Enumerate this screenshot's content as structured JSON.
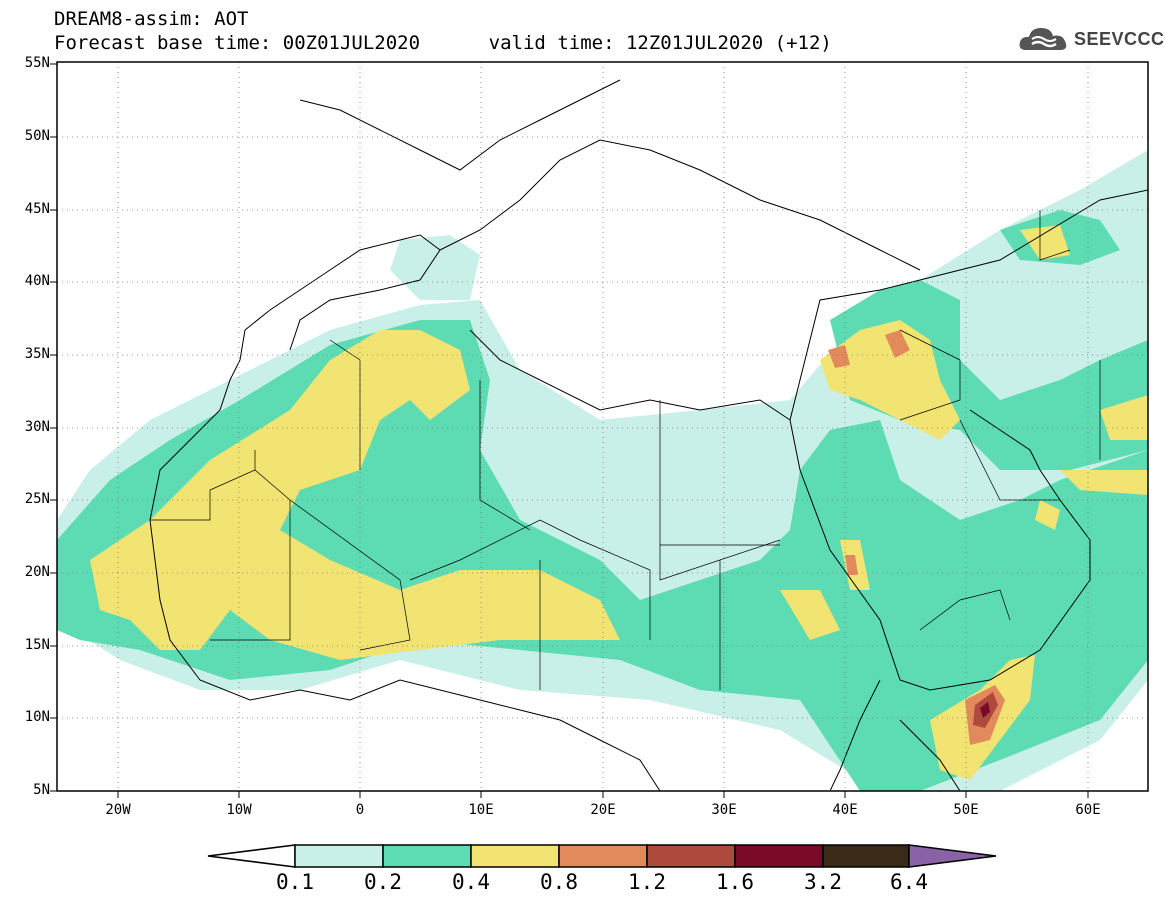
{
  "title": {
    "line1": "DREAM8-assim: AOT",
    "line2": "Forecast base time: 00Z01JUL2020      valid time: 12Z01JUL2020 (+12)"
  },
  "logo": {
    "text": "SEEVCCC",
    "icon": "cloud-icon"
  },
  "axes": {
    "lat_labels": [
      "55N",
      "50N",
      "45N",
      "40N",
      "35N",
      "30N",
      "25N",
      "20N",
      "15N",
      "10N",
      "5N"
    ],
    "lon_labels": [
      "20W",
      "10W",
      "0",
      "10E",
      "20E",
      "30E",
      "40E",
      "50E",
      "60E"
    ],
    "lon_range": [
      -25,
      65
    ],
    "lat_range": [
      5,
      55
    ]
  },
  "colorbar": {
    "labels": [
      "0.1",
      "0.2",
      "0.4",
      "0.8",
      "1.2",
      "1.6",
      "3.2",
      "6.4"
    ],
    "colors": [
      "#ffffff",
      "#c8efe8",
      "#5ddbb2",
      "#f2e472",
      "#e38a5c",
      "#ae4a3c",
      "#7a0a28",
      "#3a2a18",
      "#8a62a8"
    ]
  },
  "field_colors": {
    "light": "#c8efe8",
    "green": "#5ddbb2",
    "yellow": "#f2e472",
    "orange": "#e38a5c",
    "red": "#ae4a3c",
    "dark": "#7a0a28"
  }
}
